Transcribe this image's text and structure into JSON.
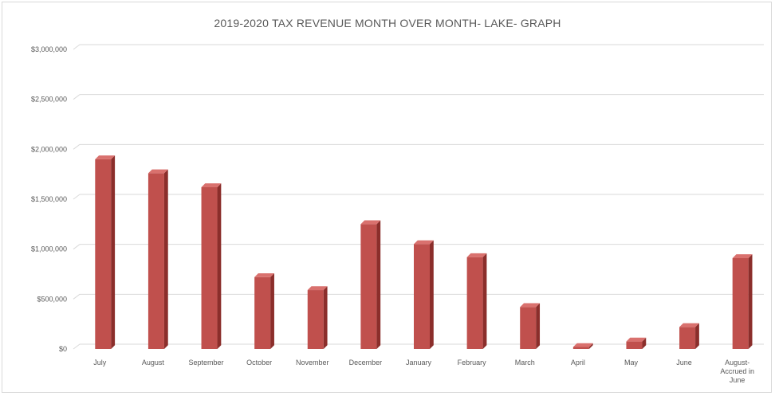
{
  "chart_data": {
    "type": "bar",
    "title": "2019-2020 TAX REVENUE MONTH OVER MONTH- LAKE- GRAPH",
    "xlabel": "",
    "ylabel": "",
    "categories": [
      "July",
      "August",
      "September",
      "October",
      "November",
      "December",
      "January",
      "February",
      "March",
      "April",
      "May",
      "June",
      "August-Accrued in June"
    ],
    "category_lines": [
      [
        "July"
      ],
      [
        "August"
      ],
      [
        "September"
      ],
      [
        "October"
      ],
      [
        "November"
      ],
      [
        "December"
      ],
      [
        "January"
      ],
      [
        "February"
      ],
      [
        "March"
      ],
      [
        "April"
      ],
      [
        "May"
      ],
      [
        "June"
      ],
      [
        "August-",
        "Accrued in",
        "June"
      ]
    ],
    "values": [
      1900000,
      1760000,
      1620000,
      720000,
      590000,
      1250000,
      1050000,
      920000,
      420000,
      20000,
      75000,
      220000,
      910000
    ],
    "ylim": [
      0,
      3000000
    ],
    "yticks": [
      0,
      500000,
      1000000,
      1500000,
      2000000,
      2500000,
      3000000
    ],
    "ytick_labels": [
      "$0",
      "$500,000",
      "$1,000,000",
      "$1,500,000",
      "$2,000,000",
      "$2,500,000",
      "$3,000,000"
    ],
    "grid": true,
    "legend": "none",
    "bar_color": "#c0504d",
    "bar_side_color": "#8b2e2b",
    "bar_top_color": "#d9716e",
    "grid_color": "#d9d9d9"
  }
}
